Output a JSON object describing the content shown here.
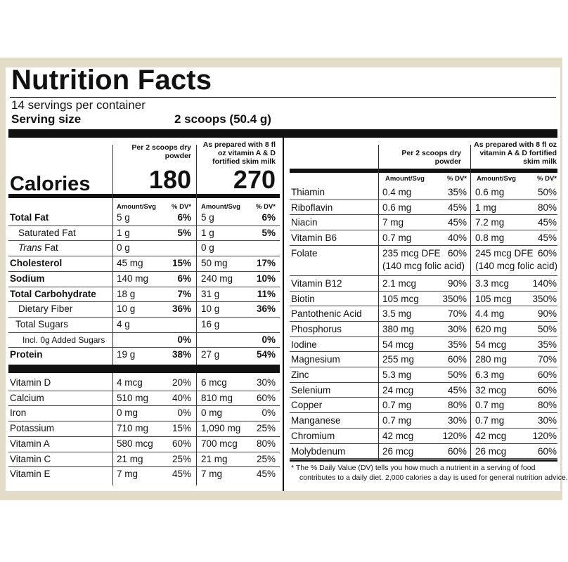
{
  "header": {
    "title": "Nutrition Facts",
    "servings": "14 servings per container",
    "serving_size_label": "Serving size",
    "serving_size_value": "2 scoops (50.4 g)"
  },
  "columns": {
    "dry_header": "Per 2 scoops dry powder",
    "milk_header": "As prepared with 8 fl oz vitamin A & D fortified skim milk",
    "amount_label": "Amount/Svg",
    "dv_label": "% DV*"
  },
  "calories": {
    "label": "Calories",
    "dry": "180",
    "milk": "270"
  },
  "left_rows": [
    {
      "name": "Total Fat",
      "dry_amt": "5 g",
      "dry_dv": "6%",
      "milk_amt": "5 g",
      "milk_dv": "6%"
    },
    {
      "name": "Saturated Fat",
      "dry_amt": "1 g",
      "dry_dv": "5%",
      "milk_amt": "1 g",
      "milk_dv": "5%"
    },
    {
      "name": "Trans Fat",
      "dry_amt": "0 g",
      "dry_dv": "",
      "milk_amt": "0 g",
      "milk_dv": ""
    },
    {
      "name": "Cholesterol",
      "dry_amt": "45 mg",
      "dry_dv": "15%",
      "milk_amt": "50 mg",
      "milk_dv": "17%"
    },
    {
      "name": "Sodium",
      "dry_amt": "140 mg",
      "dry_dv": "6%",
      "milk_amt": "240 mg",
      "milk_dv": "10%"
    },
    {
      "name": "Total Carbohydrate",
      "dry_amt": "18 g",
      "dry_dv": "7%",
      "milk_amt": "31 g",
      "milk_dv": "11%"
    },
    {
      "name": "Dietary Fiber",
      "dry_amt": "10 g",
      "dry_dv": "36%",
      "milk_amt": "10 g",
      "milk_dv": "36%"
    },
    {
      "name": "Total Sugars",
      "dry_amt": "4 g",
      "dry_dv": "",
      "milk_amt": "16 g",
      "milk_dv": ""
    },
    {
      "name": "Incl. 0g Added Sugars",
      "dry_amt": "",
      "dry_dv": "0%",
      "milk_amt": "",
      "milk_dv": "0%"
    },
    {
      "name": "Protein",
      "dry_amt": "19 g",
      "dry_dv": "38%",
      "milk_amt": "27 g",
      "milk_dv": "54%"
    }
  ],
  "vitamins_left": [
    {
      "name": "Vitamin D",
      "dry_amt": "4 mcg",
      "dry_dv": "20%",
      "milk_amt": "6 mcg",
      "milk_dv": "30%"
    },
    {
      "name": "Calcium",
      "dry_amt": "510 mg",
      "dry_dv": "40%",
      "milk_amt": "810 mg",
      "milk_dv": "60%"
    },
    {
      "name": "Iron",
      "dry_amt": "0 mg",
      "dry_dv": "0%",
      "milk_amt": "0 mg",
      "milk_dv": "0%"
    },
    {
      "name": "Potassium",
      "dry_amt": "710 mg",
      "dry_dv": "15%",
      "milk_amt": "1,090 mg",
      "milk_dv": "25%"
    },
    {
      "name": "Vitamin A",
      "dry_amt": "580 mcg",
      "dry_dv": "60%",
      "milk_amt": "700 mcg",
      "milk_dv": "80%"
    },
    {
      "name": "Vitamin C",
      "dry_amt": "21 mg",
      "dry_dv": "25%",
      "milk_amt": "21 mg",
      "milk_dv": "25%"
    },
    {
      "name": "Vitamin E",
      "dry_amt": "7 mg",
      "dry_dv": "45%",
      "milk_amt": "7 mg",
      "milk_dv": "45%"
    }
  ],
  "right_rows": [
    {
      "name": "Thiamin",
      "dry_amt": "0.4 mg",
      "dry_dv": "35%",
      "milk_amt": "0.6 mg",
      "milk_dv": "50%"
    },
    {
      "name": "Riboflavin",
      "dry_amt": "0.6 mg",
      "dry_dv": "45%",
      "milk_amt": "1 mg",
      "milk_dv": "80%"
    },
    {
      "name": "Niacin",
      "dry_amt": "7 mg",
      "dry_dv": "45%",
      "milk_amt": "7.2 mg",
      "milk_dv": "45%"
    },
    {
      "name": "Vitamin B6",
      "dry_amt": "0.7 mg",
      "dry_dv": "40%",
      "milk_amt": "0.8 mg",
      "milk_dv": "45%"
    },
    {
      "name": "Folate",
      "dry_amt": "235 mcg DFE",
      "dry_amt2": "(140 mcg folic acid)",
      "dry_dv": "60%",
      "milk_amt": "245 mcg DFE",
      "milk_amt2": "(140 mcg folic acid)",
      "milk_dv": "60%"
    },
    {
      "name": "Vitamin B12",
      "dry_amt": "2.1 mcg",
      "dry_dv": "90%",
      "milk_amt": "3.3 mcg",
      "milk_dv": "140%"
    },
    {
      "name": "Biotin",
      "dry_amt": "105 mcg",
      "dry_dv": "350%",
      "milk_amt": "105 mcg",
      "milk_dv": "350%"
    },
    {
      "name": "Pantothenic Acid",
      "dry_amt": "3.5 mg",
      "dry_dv": "70%",
      "milk_amt": "4.4 mg",
      "milk_dv": "90%"
    },
    {
      "name": "Phosphorus",
      "dry_amt": "380 mg",
      "dry_dv": "30%",
      "milk_amt": "620 mg",
      "milk_dv": "50%"
    },
    {
      "name": "Iodine",
      "dry_amt": "54 mcg",
      "dry_dv": "35%",
      "milk_amt": "54 mcg",
      "milk_dv": "35%"
    },
    {
      "name": "Magnesium",
      "dry_amt": "255 mg",
      "dry_dv": "60%",
      "milk_amt": "280 mg",
      "milk_dv": "70%"
    },
    {
      "name": "Zinc",
      "dry_amt": "5.3 mg",
      "dry_dv": "50%",
      "milk_amt": "6.3 mg",
      "milk_dv": "60%"
    },
    {
      "name": "Selenium",
      "dry_amt": "24 mcg",
      "dry_dv": "45%",
      "milk_amt": "32 mcg",
      "milk_dv": "60%"
    },
    {
      "name": "Copper",
      "dry_amt": "0.7 mg",
      "dry_dv": "80%",
      "milk_amt": "0.7 mg",
      "milk_dv": "80%"
    },
    {
      "name": "Manganese",
      "dry_amt": "0.7 mg",
      "dry_dv": "30%",
      "milk_amt": "0.7 mg",
      "milk_dv": "30%"
    },
    {
      "name": "Chromium",
      "dry_amt": "42 mcg",
      "dry_dv": "120%",
      "milk_amt": "42 mcg",
      "milk_dv": "120%"
    },
    {
      "name": "Molybdenum",
      "dry_amt": "26 mcg",
      "dry_dv": "60%",
      "milk_amt": "26 mcg",
      "milk_dv": "60%"
    }
  ],
  "footnote": {
    "line1": "* The % Daily Value (DV) tells you how much a nutrient in a serving of food",
    "line2": "contributes to a daily diet. 2,000 calories a day is used for general nutrition advice."
  }
}
